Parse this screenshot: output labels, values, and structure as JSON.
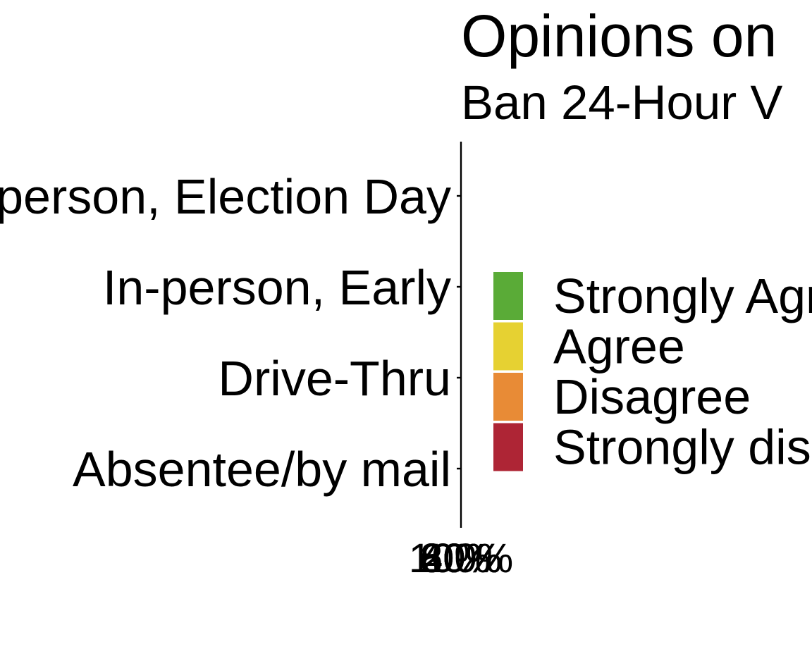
{
  "chart_data": {
    "type": "bar",
    "orientation": "horizontal",
    "stacked": true,
    "title": "Opinions on",
    "subtitle": "Ban 24-Hour V",
    "categories": [
      "In-person, Election Day",
      "In-person, Early",
      "Drive-Thru",
      "Absentee/by mail"
    ],
    "x_tick_labels": [
      "0%",
      "20%",
      "40%",
      "60%",
      "80%",
      "100%"
    ],
    "xlim": [
      0,
      100
    ],
    "grid": false,
    "legend": {
      "placement": "right",
      "entries": [
        {
          "label": "Strongly Agree",
          "color": "#5aab37"
        },
        {
          "label": "Agree",
          "color": "#e6d132"
        },
        {
          "label": "Disagree",
          "color": "#e88b36"
        },
        {
          "label": "Strongly disagree",
          "color": "#ae2535"
        }
      ]
    },
    "series": [
      {
        "name": "Strongly Agree",
        "values": [
          0,
          0,
          0,
          0
        ]
      },
      {
        "name": "Agree",
        "values": [
          0,
          0,
          0,
          0
        ]
      },
      {
        "name": "Disagree",
        "values": [
          0,
          0,
          0,
          0
        ]
      },
      {
        "name": "Strongly disagree",
        "values": [
          0,
          0,
          0,
          0
        ]
      }
    ]
  }
}
